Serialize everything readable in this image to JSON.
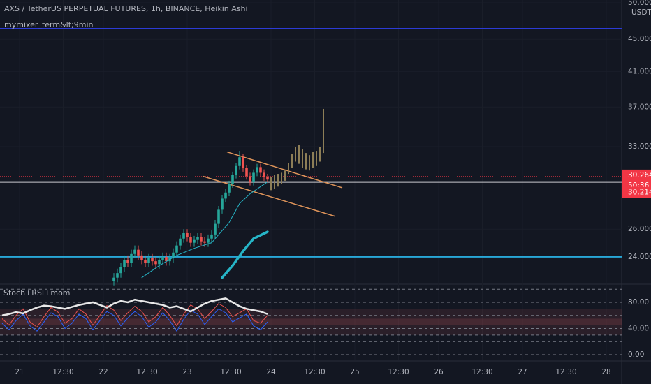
{
  "chart_data": [
    {
      "type": "candlestick",
      "title": "AXS / TetherUS PERPETUAL FUTURES, 1h, BINANCE, Heikin Ashi",
      "subtitle": "mymixer_term&lt;9min",
      "unit": "USDT",
      "log_scale": true,
      "xlim": [
        -5.6,
        172.4
      ],
      "xticks": [
        {
          "value": 0,
          "label": "21"
        },
        {
          "value": 12.5,
          "label": "12:30"
        },
        {
          "value": 24,
          "label": "22"
        },
        {
          "value": 36.5,
          "label": "12:30"
        },
        {
          "value": 48,
          "label": "23"
        },
        {
          "value": 60.5,
          "label": "12:30"
        },
        {
          "value": 72,
          "label": "24"
        },
        {
          "value": 84.5,
          "label": "12:30"
        },
        {
          "value": 96,
          "label": "25"
        },
        {
          "value": 108.5,
          "label": "12:30"
        },
        {
          "value": 120,
          "label": "26"
        },
        {
          "value": 132.5,
          "label": "12:30"
        },
        {
          "value": 144,
          "label": "27"
        },
        {
          "value": 156.5,
          "label": "12:30"
        },
        {
          "value": 168,
          "label": "28"
        }
      ],
      "ylim": [
        22.27,
        50.4
      ],
      "yticks": [
        {
          "value": 24,
          "label": "24.000"
        },
        {
          "value": 26,
          "label": "26.000"
        },
        {
          "value": 33,
          "label": "33.000"
        },
        {
          "value": 37,
          "label": "37.000"
        },
        {
          "value": 41,
          "label": "41.000"
        },
        {
          "value": 45,
          "label": "45.000"
        },
        {
          "value": 50,
          "label": "50.000"
        }
      ],
      "candles": {
        "up_color": "#26a69a",
        "down_color": "#ef5350",
        "x": [
          27,
          28,
          29,
          30,
          31,
          32,
          33,
          34,
          35,
          36,
          37,
          38,
          39,
          40,
          41,
          42,
          43,
          44,
          45,
          46,
          47,
          48,
          49,
          50,
          51,
          52,
          53,
          54,
          55,
          56,
          57,
          58,
          59,
          60,
          61,
          62,
          63,
          64,
          65,
          66,
          67,
          68,
          69,
          70,
          71
        ],
        "open": [
          22.4,
          22.6,
          22.9,
          23.3,
          23.8,
          23.6,
          24.2,
          24.5,
          24.1,
          23.8,
          23.6,
          23.9,
          23.7,
          23.5,
          23.8,
          24.0,
          23.7,
          23.9,
          24.3,
          24.8,
          25.3,
          25.7,
          25.4,
          25.0,
          25.2,
          25.4,
          25.1,
          25.0,
          25.3,
          25.6,
          26.4,
          27.5,
          28.4,
          28.9,
          29.6,
          30.4,
          31.2,
          32.0,
          31.0,
          30.3,
          29.8,
          30.6,
          31.1,
          30.6,
          30.2
        ],
        "high": [
          22.9,
          23.2,
          23.6,
          24.1,
          24.1,
          24.5,
          24.8,
          24.8,
          24.4,
          24.1,
          24.2,
          24.2,
          24.0,
          24.1,
          24.3,
          24.3,
          24.2,
          24.6,
          25.1,
          25.6,
          26.0,
          26.0,
          25.7,
          25.5,
          25.7,
          25.7,
          25.4,
          25.6,
          25.9,
          26.7,
          27.8,
          28.7,
          29.2,
          29.9,
          30.7,
          31.5,
          32.6,
          32.3,
          31.3,
          30.6,
          30.9,
          31.4,
          31.4,
          30.9,
          30.5
        ],
        "low": [
          22.1,
          22.3,
          22.6,
          23.0,
          23.3,
          23.3,
          23.9,
          23.8,
          23.5,
          23.3,
          23.3,
          23.4,
          23.2,
          23.2,
          23.5,
          23.4,
          23.4,
          23.6,
          24.0,
          24.5,
          25.0,
          25.1,
          24.7,
          24.7,
          24.9,
          24.8,
          24.7,
          24.7,
          25.0,
          25.3,
          26.1,
          27.2,
          28.1,
          28.6,
          29.3,
          30.1,
          30.9,
          30.7,
          30.0,
          29.5,
          29.5,
          30.3,
          30.3,
          29.9,
          29.7
        ],
        "close": [
          22.6,
          22.9,
          23.3,
          23.8,
          23.6,
          24.2,
          24.5,
          24.1,
          23.8,
          23.6,
          23.9,
          23.7,
          23.5,
          23.8,
          24.0,
          23.7,
          23.9,
          24.3,
          24.8,
          25.3,
          25.7,
          25.4,
          25.0,
          25.2,
          25.4,
          25.1,
          25.0,
          25.3,
          25.6,
          26.4,
          27.5,
          28.4,
          28.9,
          29.6,
          30.4,
          31.2,
          32.0,
          31.0,
          30.3,
          29.8,
          30.6,
          31.1,
          30.6,
          30.2,
          30.0
        ]
      },
      "projection": {
        "color": "#8d7e57",
        "x": [
          72,
          73,
          74,
          75,
          76,
          77,
          78,
          79,
          80,
          81,
          82,
          83,
          84,
          85,
          86,
          87
        ],
        "high": [
          30.2,
          30.4,
          30.5,
          30.6,
          30.8,
          31.5,
          32.3,
          33.0,
          33.2,
          32.8,
          32.4,
          32.2,
          32.5,
          32.6,
          33.0,
          36.8
        ],
        "low": [
          29.1,
          29.2,
          29.4,
          29.6,
          29.9,
          30.5,
          31.0,
          31.6,
          31.4,
          31.0,
          30.9,
          30.8,
          31.0,
          31.2,
          31.6,
          32.4
        ]
      },
      "lines": [
        {
          "color": "#26b5c7",
          "width": 1,
          "x": [
            35,
            40,
            45,
            50,
            55,
            60,
            63,
            66,
            70,
            71
          ],
          "values": [
            22.6,
            23.4,
            24.1,
            24.6,
            25.0,
            26.5,
            28.0,
            28.8,
            29.6,
            29.8
          ]
        },
        {
          "color": "#26b5c7",
          "width": 3.5,
          "x": [
            58,
            61,
            64,
            67,
            71
          ],
          "values": [
            22.6,
            23.4,
            24.4,
            25.3,
            25.8
          ]
        }
      ],
      "levels": [
        {
          "value": 46.4,
          "color": "#2c3bd6"
        },
        {
          "value": 24.0,
          "color": "#28a8d8"
        },
        {
          "value": 29.8,
          "color": "#c9c9cf"
        }
      ],
      "channel": [
        {
          "color": "#e0955a",
          "x": [
            59.4,
            92.4
          ],
          "values": [
            32.5,
            29.3
          ]
        },
        {
          "color": "#e0955a",
          "x": [
            52.4,
            90.4
          ],
          "values": [
            30.3,
            26.98
          ]
        }
      ],
      "last_price": 30.264,
      "countdown": "50:36",
      "bid": 30.214,
      "price_label_color": "#f23645"
    },
    {
      "type": "line",
      "title": "Stoch+RSI+mom",
      "xlim": [
        -5.6,
        172.4
      ],
      "x": [
        -5,
        -3,
        -1,
        1,
        3,
        5,
        7,
        9,
        11,
        13,
        15,
        17,
        19,
        21,
        23,
        25,
        27,
        29,
        31,
        33,
        35,
        37,
        39,
        41,
        43,
        45,
        47,
        49,
        51,
        53,
        55,
        57,
        59,
        61,
        63,
        65,
        67,
        69,
        71
      ],
      "ylim": [
        -7.5,
        104.5
      ],
      "yticks": [
        {
          "value": 0,
          "label": "0.00"
        },
        {
          "value": 40,
          "label": "40.00"
        },
        {
          "value": 80,
          "label": "80.00"
        }
      ],
      "levels": [
        100,
        60,
        30,
        20
      ],
      "bands": [
        {
          "from": 30,
          "to": 70,
          "color": "rgba(150,70,80,0.18)"
        },
        {
          "from": 45,
          "to": 55,
          "color": "rgba(150,70,80,0.25)"
        }
      ],
      "series": [
        {
          "color": "#ef5350",
          "width": 1,
          "values": [
            55,
            45,
            60,
            70,
            50,
            42,
            58,
            72,
            65,
            48,
            55,
            70,
            62,
            45,
            60,
            75,
            68,
            52,
            64,
            74,
            66,
            50,
            58,
            72,
            60,
            44,
            62,
            76,
            70,
            55,
            66,
            78,
            72,
            58,
            64,
            70,
            52,
            48,
            60
          ]
        },
        {
          "color": "#2962ff",
          "width": 1,
          "values": [
            48,
            38,
            52,
            62,
            44,
            36,
            50,
            64,
            58,
            40,
            48,
            62,
            55,
            38,
            52,
            66,
            60,
            44,
            56,
            66,
            58,
            42,
            50,
            64,
            52,
            36,
            54,
            68,
            62,
            46,
            58,
            70,
            64,
            50,
            56,
            62,
            44,
            38,
            50
          ]
        },
        {
          "color": "#e8e8e8",
          "width": 2.5,
          "values": [
            60,
            62,
            65,
            63,
            68,
            72,
            75,
            74,
            72,
            70,
            73,
            76,
            78,
            80,
            76,
            72,
            78,
            82,
            80,
            84,
            82,
            80,
            78,
            76,
            72,
            74,
            70,
            66,
            72,
            78,
            82,
            84,
            86,
            80,
            74,
            70,
            68,
            66,
            62
          ]
        }
      ]
    }
  ]
}
